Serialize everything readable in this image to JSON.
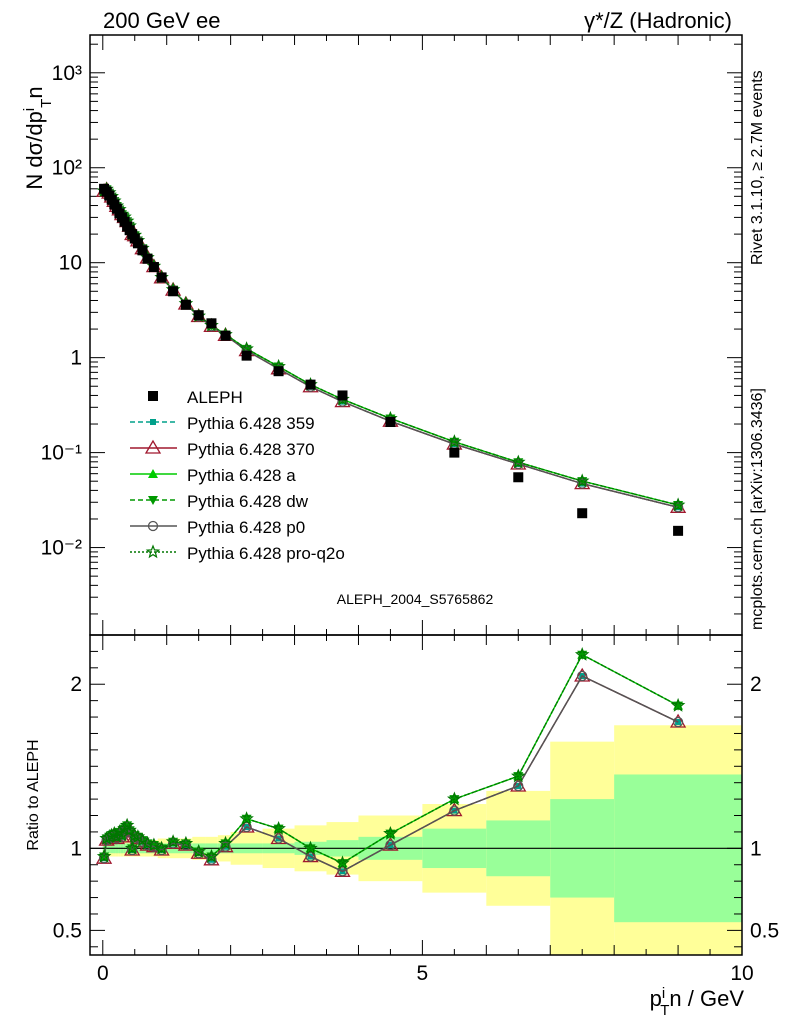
{
  "header": {
    "left": "200 GeV ee",
    "right": "γ*/Z (Hadronic)"
  },
  "side_texts": {
    "rivet": "Rivet 3.1.10, ≥ 2.7M events",
    "mcplots": "mcplots.cern.ch [arXiv:1306.3436]"
  },
  "analysis_id": "ALEPH_2004_S5765862",
  "colors": {
    "data": "#000000",
    "p359": "#00a08a",
    "p370": "#a0182e",
    "pa": "#00cc00",
    "pdw": "#009900",
    "pp0": "#555555",
    "ppro": "#007700",
    "band_outer": "#ffff99",
    "band_inner": "#99ff99"
  },
  "chart_data": [
    {
      "type": "scatter",
      "title": "",
      "ylabel": "N dσ/dp_T^i n",
      "yscale": "log",
      "ylim": [
        0.0012,
        2500
      ],
      "xlim": [
        -0.2,
        10
      ],
      "y_ticks": [
        "10³",
        "10²",
        "10",
        "1",
        "10⁻¹",
        "10⁻²"
      ],
      "legend_placement": "center-left",
      "data": {
        "name": "ALEPH",
        "x": [
          0.02,
          0.06,
          0.1,
          0.14,
          0.18,
          0.22,
          0.26,
          0.3,
          0.34,
          0.38,
          0.42,
          0.46,
          0.5,
          0.55,
          0.62,
          0.7,
          0.8,
          0.92,
          1.1,
          1.3,
          1.5,
          1.7,
          1.92,
          2.25,
          2.75,
          3.25,
          3.75,
          4.5,
          5.5,
          6.5,
          7.5,
          9.0
        ],
        "y": [
          60,
          56,
          51,
          46,
          41,
          37,
          33,
          30,
          27,
          24,
          22,
          20,
          18,
          16,
          13.5,
          11,
          9,
          7,
          5,
          3.6,
          2.8,
          2.3,
          1.7,
          1.05,
          0.72,
          0.52,
          0.4,
          0.21,
          0.1,
          0.055,
          0.023,
          0.015
        ]
      },
      "series": [
        {
          "name": "Pythia 6.428 359",
          "key": "p359"
        },
        {
          "name": "Pythia 6.428 370",
          "key": "p370"
        },
        {
          "name": "Pythia 6.428 a",
          "key": "pa"
        },
        {
          "name": "Pythia 6.428 dw",
          "key": "pdw"
        },
        {
          "name": "Pythia 6.428 p0",
          "key": "pp0"
        },
        {
          "name": "Pythia 6.428 pro-q2o",
          "key": "ppro"
        }
      ]
    },
    {
      "type": "line",
      "ylabel": "Ratio to ALEPH",
      "xlabel": "p_T^i n / GeV",
      "xlim": [
        -0.2,
        10
      ],
      "ylim": [
        0.35,
        2.3
      ],
      "x_ticks": [
        "0",
        "5",
        "10"
      ],
      "y_ticks": [
        "0.5",
        "1",
        "2"
      ],
      "bins": [
        0,
        0.04,
        0.08,
        0.12,
        0.16,
        0.2,
        0.24,
        0.28,
        0.32,
        0.36,
        0.4,
        0.44,
        0.48,
        0.52,
        0.58,
        0.66,
        0.74,
        0.86,
        1.0,
        1.2,
        1.4,
        1.6,
        1.8,
        2.0,
        2.5,
        3.0,
        3.5,
        4.0,
        5.0,
        6.0,
        7.0,
        8.0,
        10.0
      ],
      "band_inner": [
        0.03,
        0.03,
        0.03,
        0.03,
        0.03,
        0.03,
        0.03,
        0.03,
        0.03,
        0.03,
        0.03,
        0.03,
        0.03,
        0.03,
        0.03,
        0.03,
        0.03,
        0.03,
        0.03,
        0.03,
        0.03,
        0.03,
        0.03,
        0.03,
        0.03,
        0.04,
        0.05,
        0.07,
        0.12,
        0.17,
        0.3,
        0.45
      ],
      "band_outer": [
        0.05,
        0.05,
        0.05,
        0.05,
        0.05,
        0.05,
        0.05,
        0.05,
        0.05,
        0.05,
        0.05,
        0.05,
        0.05,
        0.05,
        0.05,
        0.05,
        0.05,
        0.06,
        0.06,
        0.06,
        0.07,
        0.07,
        0.08,
        0.1,
        0.12,
        0.14,
        0.16,
        0.2,
        0.27,
        0.35,
        0.65,
        0.75
      ],
      "ratios": {
        "lower": [
          0.94,
          1.05,
          1.06,
          1.07,
          1.08,
          1.06,
          1.09,
          1.07,
          1.11,
          1.13,
          1.1,
          0.99,
          1.07,
          1.06,
          1.04,
          1.02,
          1.01,
          0.99,
          1.03,
          1.02,
          0.97,
          0.93,
          1.01,
          1.13,
          1.06,
          0.95,
          0.86,
          1.02,
          1.23,
          1.38,
          2.05,
          1.77
        ],
        "upper": [
          0.95,
          1.06,
          1.07,
          1.08,
          1.09,
          1.07,
          1.1,
          1.08,
          1.12,
          1.14,
          1.11,
          1.0,
          1.08,
          1.07,
          1.05,
          1.03,
          1.02,
          1.0,
          1.04,
          1.03,
          0.98,
          0.95,
          1.03,
          1.18,
          1.12,
          1.0,
          0.91,
          1.09,
          1.3,
          1.44,
          2.18,
          1.87
        ]
      }
    }
  ]
}
